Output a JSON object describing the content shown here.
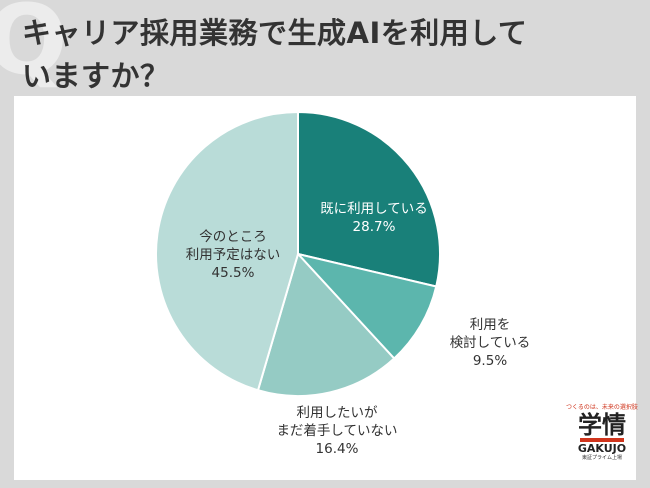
{
  "header": {
    "question_mark": "Q",
    "title_line1": "キャリア採用業務で生成AIを利用して",
    "title_line2": "いますか？"
  },
  "chart_data": {
    "type": "pie",
    "slices": [
      {
        "label_lines": [
          "既に利用している"
        ],
        "value": 28.7,
        "value_text": "28.7%",
        "color": "#198079"
      },
      {
        "label_lines": [
          "利用を",
          "検討している"
        ],
        "value": 9.5,
        "value_text": "9.5%",
        "color": "#5cb6ad"
      },
      {
        "label_lines": [
          "利用したいが",
          "まだ着手していない"
        ],
        "value": 16.4,
        "value_text": "16.4%",
        "color": "#95cbc4"
      },
      {
        "label_lines": [
          "今のところ",
          "利用予定はない"
        ],
        "value": 45.5,
        "value_text": "45.5%",
        "color": "#b9dcd8"
      }
    ],
    "start_angle": "12 o'clock",
    "direction": "clockwise"
  },
  "logo": {
    "tagline": "つくるのは、未来の選択肢",
    "name": "学情",
    "name_en": "GAKUJO",
    "footer": "東証プライム上場"
  }
}
